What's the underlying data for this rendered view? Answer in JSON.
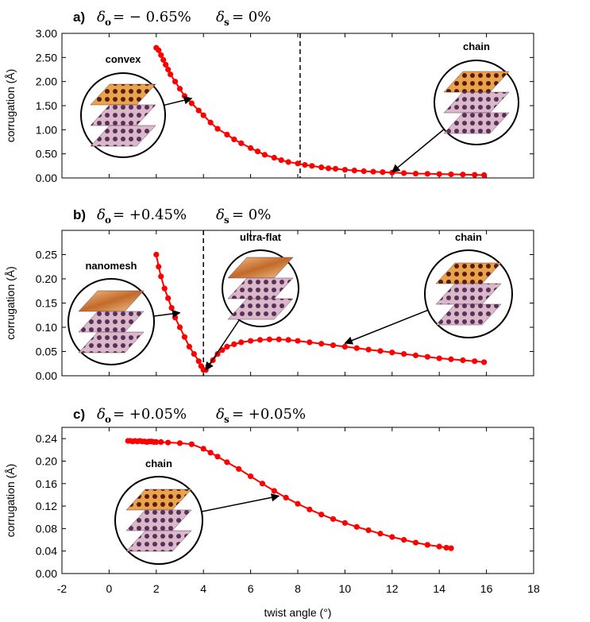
{
  "chart_data": [
    {
      "type": "line",
      "panel_label": "a)",
      "delta_o": "− 0.65%",
      "delta_s": "0%",
      "xlabel": "twist angle (°)",
      "ylabel": "corrugation (Å)",
      "xlim": [
        -2,
        18
      ],
      "ylim": [
        0,
        3.0
      ],
      "ytick_labels": [
        "0.00",
        "0.50",
        "1.00",
        "1.50",
        "2.00",
        "2.50",
        "3.00"
      ],
      "dashed_vline_x": 8.1,
      "series_color": "#ff0000",
      "x": [
        2.0,
        2.1,
        2.2,
        2.3,
        2.4,
        2.5,
        2.6,
        2.8,
        3.0,
        3.2,
        3.5,
        3.8,
        4.0,
        4.3,
        4.6,
        5.0,
        5.3,
        5.6,
        6.0,
        6.3,
        6.6,
        7.0,
        7.3,
        7.6,
        8.0,
        8.3,
        8.6,
        9.0,
        9.3,
        9.6,
        10.0,
        10.4,
        10.8,
        11.2,
        11.6,
        12.0,
        12.5,
        13.0,
        13.5,
        14.0,
        14.5,
        15.0,
        15.5,
        15.9
      ],
      "y": [
        2.7,
        2.65,
        2.55,
        2.45,
        2.35,
        2.25,
        2.15,
        2.0,
        1.85,
        1.7,
        1.55,
        1.4,
        1.3,
        1.15,
        1.02,
        0.9,
        0.8,
        0.72,
        0.62,
        0.55,
        0.48,
        0.42,
        0.37,
        0.33,
        0.3,
        0.27,
        0.25,
        0.22,
        0.2,
        0.19,
        0.17,
        0.155,
        0.14,
        0.13,
        0.12,
        0.11,
        0.1,
        0.09,
        0.085,
        0.08,
        0.075,
        0.07,
        0.065,
        0.06
      ],
      "insets": [
        {
          "label": "convex",
          "arrow_to": [
            3.5,
            1.65
          ]
        },
        {
          "label": "chain",
          "arrow_to": [
            12.0,
            0.12
          ]
        }
      ]
    },
    {
      "type": "line",
      "panel_label": "b)",
      "delta_o": "+0.45%",
      "delta_s": "0%",
      "xlabel": "twist angle (°)",
      "ylabel": "corrugation (Å)",
      "xlim": [
        -2,
        18
      ],
      "ylim": [
        0,
        0.3
      ],
      "ytick_labels": [
        "0.00",
        "0.05",
        "0.10",
        "0.15",
        "0.20",
        "0.25"
      ],
      "dashed_vline_x": 4.0,
      "series_color": "#ff0000",
      "x": [
        2.0,
        2.1,
        2.2,
        2.35,
        2.5,
        2.65,
        2.8,
        3.0,
        3.2,
        3.4,
        3.6,
        3.8,
        3.9,
        4.0,
        4.1,
        4.2,
        4.4,
        4.6,
        4.8,
        5.0,
        5.3,
        5.6,
        6.0,
        6.4,
        6.8,
        7.2,
        7.6,
        8.0,
        8.5,
        9.0,
        9.5,
        10.0,
        10.5,
        11.0,
        11.5,
        12.0,
        12.5,
        13.0,
        13.5,
        14.0,
        14.5,
        15.0,
        15.5,
        15.9
      ],
      "y": [
        0.25,
        0.225,
        0.205,
        0.18,
        0.16,
        0.14,
        0.12,
        0.1,
        0.08,
        0.06,
        0.045,
        0.03,
        0.02,
        0.012,
        0.012,
        0.02,
        0.032,
        0.045,
        0.053,
        0.06,
        0.065,
        0.069,
        0.072,
        0.074,
        0.075,
        0.075,
        0.074,
        0.072,
        0.069,
        0.066,
        0.063,
        0.06,
        0.057,
        0.054,
        0.051,
        0.048,
        0.045,
        0.042,
        0.039,
        0.036,
        0.034,
        0.032,
        0.03,
        0.028
      ],
      "insets": [
        {
          "label": "nanomesh",
          "arrow_to": [
            3.0,
            0.13
          ]
        },
        {
          "label": "ultra-flat",
          "arrow_to": [
            4.1,
            0.012
          ]
        },
        {
          "label": "chain",
          "arrow_to": [
            10.0,
            0.067
          ]
        }
      ]
    },
    {
      "type": "line",
      "panel_label": "c)",
      "delta_o": "+0.05%",
      "delta_s": "+0.05%",
      "xlabel": "twist angle (°)",
      "ylabel": "corrugation (Å)",
      "xlim": [
        -2,
        18
      ],
      "ylim": [
        0,
        0.26
      ],
      "ytick_labels": [
        "0.00",
        "0.04",
        "0.08",
        "0.12",
        "0.16",
        "0.20",
        "0.24"
      ],
      "xtick_labels": [
        "-2",
        "0",
        "2",
        "4",
        "6",
        "8",
        "10",
        "12",
        "14",
        "16",
        "18"
      ],
      "series_color": "#ff0000",
      "x": [
        0.8,
        0.9,
        1.0,
        1.1,
        1.2,
        1.3,
        1.4,
        1.5,
        1.6,
        1.7,
        1.8,
        1.9,
        2.0,
        2.2,
        2.5,
        3.0,
        3.5,
        4.0,
        4.3,
        4.6,
        5.0,
        5.5,
        6.0,
        6.5,
        7.0,
        7.5,
        8.0,
        8.5,
        9.0,
        9.5,
        10.0,
        10.5,
        11.0,
        11.5,
        12.0,
        12.5,
        13.0,
        13.5,
        14.0,
        14.3,
        14.5
      ],
      "y": [
        0.236,
        0.236,
        0.235,
        0.236,
        0.235,
        0.236,
        0.235,
        0.235,
        0.234,
        0.235,
        0.235,
        0.234,
        0.234,
        0.234,
        0.233,
        0.232,
        0.23,
        0.222,
        0.215,
        0.208,
        0.198,
        0.186,
        0.173,
        0.16,
        0.147,
        0.135,
        0.124,
        0.114,
        0.105,
        0.097,
        0.09,
        0.083,
        0.077,
        0.071,
        0.065,
        0.06,
        0.055,
        0.051,
        0.048,
        0.046,
        0.045
      ],
      "insets": [
        {
          "label": "chain",
          "arrow_to": [
            7.2,
            0.138
          ]
        }
      ]
    }
  ]
}
